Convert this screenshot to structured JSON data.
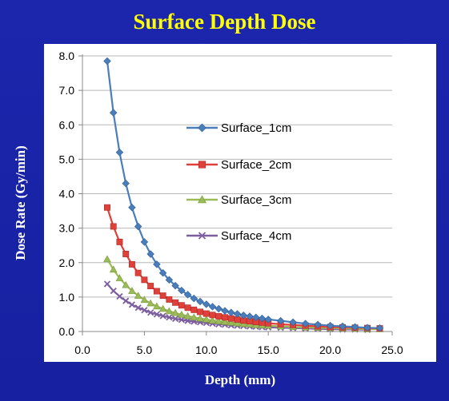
{
  "chart_data": {
    "type": "line",
    "title": "Surface Depth Dose",
    "xlabel": "Depth (mm)",
    "ylabel": "Dose Rate (Gy/min)",
    "xlim": [
      0,
      25
    ],
    "ylim": [
      0,
      8
    ],
    "x_ticks": [
      "0.0",
      "5.0",
      "10.0",
      "15.0",
      "20.0",
      "25.0"
    ],
    "y_ticks": [
      "0.0",
      "1.0",
      "2.0",
      "3.0",
      "4.0",
      "5.0",
      "6.0",
      "7.0",
      "8.0"
    ],
    "grid": "horizontal",
    "legend_position": "center-right",
    "series": [
      {
        "name": "Surface_1cm",
        "color": "#4a7ebb",
        "marker": "diamond",
        "x": [
          2.0,
          2.5,
          3.0,
          3.5,
          4.0,
          4.5,
          5.0,
          5.5,
          6.0,
          6.5,
          7.0,
          7.5,
          8.0,
          8.5,
          9.0,
          9.5,
          10.0,
          10.5,
          11.0,
          11.5,
          12.0,
          12.5,
          13.0,
          13.5,
          14.0,
          14.5,
          15.0,
          16.0,
          17.0,
          18.0,
          19.0,
          20.0,
          21.0,
          22.0,
          23.0,
          24.0
        ],
        "y": [
          7.85,
          6.35,
          5.2,
          4.3,
          3.6,
          3.05,
          2.6,
          2.25,
          1.95,
          1.7,
          1.5,
          1.33,
          1.19,
          1.07,
          0.96,
          0.87,
          0.79,
          0.72,
          0.66,
          0.6,
          0.55,
          0.51,
          0.47,
          0.44,
          0.41,
          0.38,
          0.35,
          0.31,
          0.27,
          0.23,
          0.2,
          0.17,
          0.15,
          0.13,
          0.11,
          0.1
        ]
      },
      {
        "name": "Surface_2cm",
        "color": "#e0403a",
        "marker": "square",
        "x": [
          2.0,
          2.5,
          3.0,
          3.5,
          4.0,
          4.5,
          5.0,
          5.5,
          6.0,
          6.5,
          7.0,
          7.5,
          8.0,
          8.5,
          9.0,
          9.5,
          10.0,
          10.5,
          11.0,
          11.5,
          12.0,
          12.5,
          13.0,
          13.5,
          14.0,
          14.5,
          15.0,
          16.0,
          17.0,
          18.0,
          19.0,
          20.0,
          21.0,
          22.0,
          23.0,
          24.0
        ],
        "y": [
          3.6,
          3.05,
          2.6,
          2.25,
          1.95,
          1.7,
          1.5,
          1.32,
          1.17,
          1.04,
          0.93,
          0.84,
          0.76,
          0.69,
          0.63,
          0.57,
          0.52,
          0.48,
          0.44,
          0.41,
          0.38,
          0.35,
          0.32,
          0.3,
          0.28,
          0.26,
          0.24,
          0.21,
          0.19,
          0.17,
          0.15,
          0.13,
          0.12,
          0.11,
          0.1,
          0.09
        ]
      },
      {
        "name": "Surface_3cm",
        "color": "#9bbb59",
        "marker": "triangle",
        "x": [
          2.0,
          2.5,
          3.0,
          3.5,
          4.0,
          4.5,
          5.0,
          5.5,
          6.0,
          6.5,
          7.0,
          7.5,
          8.0,
          8.5,
          9.0,
          9.5,
          10.0,
          10.5,
          11.0,
          11.5,
          12.0,
          12.5,
          13.0,
          13.5,
          14.0,
          14.5,
          15.0,
          16.0,
          17.0,
          18.0,
          19.0,
          20.0,
          21.0,
          22.0,
          23.0,
          24.0
        ],
        "y": [
          2.1,
          1.8,
          1.55,
          1.35,
          1.18,
          1.04,
          0.92,
          0.82,
          0.73,
          0.66,
          0.59,
          0.54,
          0.49,
          0.45,
          0.41,
          0.38,
          0.35,
          0.32,
          0.3,
          0.28,
          0.26,
          0.24,
          0.22,
          0.21,
          0.19,
          0.18,
          0.17,
          0.15,
          0.13,
          0.12,
          0.11,
          0.1,
          0.09,
          0.08,
          0.07,
          0.07
        ]
      },
      {
        "name": "Surface_4cm",
        "color": "#7d5fa0",
        "marker": "x",
        "x": [
          2.0,
          2.5,
          3.0,
          3.5,
          4.0,
          4.5,
          5.0,
          5.5,
          6.0,
          6.5,
          7.0,
          7.5,
          8.0,
          8.5,
          9.0,
          9.5,
          10.0,
          10.5,
          11.0,
          11.5,
          12.0,
          12.5,
          13.0,
          13.5,
          14.0,
          14.5,
          15.0,
          16.0,
          17.0,
          18.0,
          19.0,
          20.0,
          21.0,
          22.0,
          23.0
        ],
        "y": [
          1.38,
          1.18,
          1.02,
          0.89,
          0.78,
          0.69,
          0.62,
          0.55,
          0.5,
          0.45,
          0.41,
          0.37,
          0.34,
          0.31,
          0.29,
          0.27,
          0.25,
          0.23,
          0.21,
          0.2,
          0.18,
          0.17,
          0.16,
          0.15,
          0.14,
          0.13,
          0.12,
          0.11,
          0.1,
          0.09,
          0.08,
          0.07,
          0.06,
          0.06,
          0.05
        ]
      }
    ]
  }
}
